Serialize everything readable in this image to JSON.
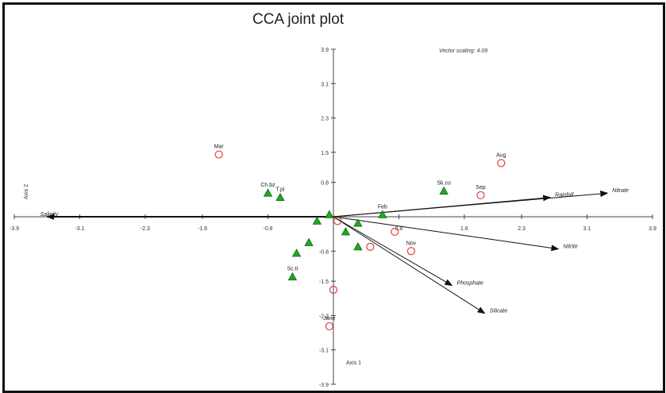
{
  "chart_data": {
    "type": "scatter",
    "title": "CCA joint plot",
    "note": "Vector scaling: 4.09",
    "xlabel": "Axis 1",
    "ylabel": "Axis 2",
    "xlim": [
      -3.9,
      3.9
    ],
    "ylim": [
      -3.9,
      3.9
    ],
    "x_ticks": [
      -3.9,
      -3.1,
      -2.3,
      -1.6,
      -0.8,
      0.8,
      1.6,
      2.3,
      3.1,
      3.9
    ],
    "x_tick_labels": [
      "-3.9",
      "-3.1",
      "-2.3",
      "-1.6",
      "-0.8",
      "0.8",
      "1.6",
      "2.3",
      "3.1",
      "3.9"
    ],
    "y_ticks": [
      3.9,
      3.1,
      2.3,
      1.5,
      0.8,
      -0.8,
      -1.5,
      -2.3,
      -3.1,
      -3.9
    ],
    "y_tick_labels": [
      "3.9",
      "3.1",
      "2.3",
      "1.5",
      "0.8",
      "-0.8",
      "-1.5",
      "-2.3",
      "-3.1",
      "-3.9"
    ],
    "grid": false,
    "samples": [
      {
        "label": "Mar",
        "x": -1.4,
        "y": 1.45
      },
      {
        "label": "Aug",
        "x": 2.05,
        "y": 1.25
      },
      {
        "label": "Sep",
        "x": 1.8,
        "y": 0.5
      },
      {
        "label": "Nov",
        "x": 0.95,
        "y": -0.8
      },
      {
        "label": "",
        "x": 0.75,
        "y": -0.35
      },
      {
        "label": "",
        "x": 0.45,
        "y": -0.7
      },
      {
        "label": "",
        "x": 0.0,
        "y": -1.7
      },
      {
        "label": "Jane",
        "x": -0.05,
        "y": -2.55
      },
      {
        "label": "",
        "x": 0.05,
        "y": -0.1
      }
    ],
    "species": [
      {
        "label": "Sk.co",
        "x": 1.35,
        "y": 0.6
      },
      {
        "label": "Ch.bz",
        "x": -0.8,
        "y": 0.55
      },
      {
        "label": "T.pi",
        "x": -0.65,
        "y": 0.45
      },
      {
        "label": "Feb",
        "x": 0.6,
        "y": 0.05
      },
      {
        "label": "",
        "x": 0.3,
        "y": -0.15
      },
      {
        "label": "",
        "x": 0.15,
        "y": -0.35
      },
      {
        "label": "",
        "x": 0.3,
        "y": -0.7
      },
      {
        "label": "",
        "x": -0.3,
        "y": -0.6
      },
      {
        "label": "",
        "x": -0.45,
        "y": -0.85
      },
      {
        "label": "Sc.ti",
        "x": -0.5,
        "y": -1.4
      },
      {
        "label": "",
        "x": -0.2,
        "y": -0.1
      },
      {
        "label": "",
        "x": -0.05,
        "y": 0.05
      }
    ],
    "vectors": [
      {
        "label": "Salinity",
        "x": -3.5,
        "y": 0.0
      },
      {
        "label": "Nitrate",
        "x": 3.35,
        "y": 0.55
      },
      {
        "label": "Rainfall",
        "x": 2.65,
        "y": 0.45
      },
      {
        "label": "Nitrite",
        "x": 2.75,
        "y": -0.75
      },
      {
        "label": "Phosphate",
        "x": 1.45,
        "y": -1.6
      },
      {
        "label": "Silicate",
        "x": 1.85,
        "y": -2.25
      }
    ]
  }
}
